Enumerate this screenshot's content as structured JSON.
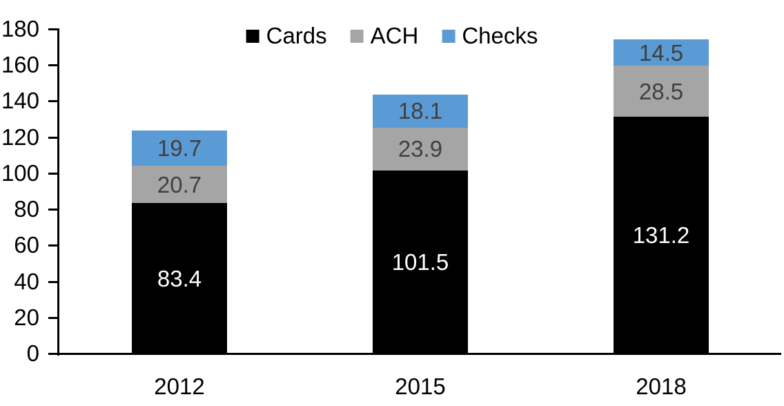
{
  "chart_data": {
    "type": "bar",
    "stacked": true,
    "categories": [
      "2012",
      "2015",
      "2018"
    ],
    "series": [
      {
        "name": "Cards",
        "values": [
          83.4,
          101.5,
          131.2
        ],
        "color": "#000000",
        "label_color": "#FFFFFF"
      },
      {
        "name": "ACH",
        "values": [
          20.7,
          23.9,
          28.5
        ],
        "color": "#A5A5A5",
        "label_color": "#404040"
      },
      {
        "name": "Checks",
        "values": [
          19.7,
          18.1,
          14.5
        ],
        "color": "#5B9BD5",
        "label_color": "#404040"
      }
    ],
    "totals": [
      123.8,
      143.5,
      174.2
    ],
    "ylim": [
      0,
      180
    ],
    "ytick_step": 20,
    "ytick_labels": [
      "0",
      "20",
      "40",
      "60",
      "80",
      "100",
      "120",
      "140",
      "160",
      "180"
    ],
    "grid": false,
    "legend_position": "top-center",
    "legend_items": [
      "Cards",
      "ACH",
      "Checks"
    ],
    "axis_color": "#000000",
    "background_color": "#FFFFFF",
    "bar_value_labels_shown": true
  }
}
